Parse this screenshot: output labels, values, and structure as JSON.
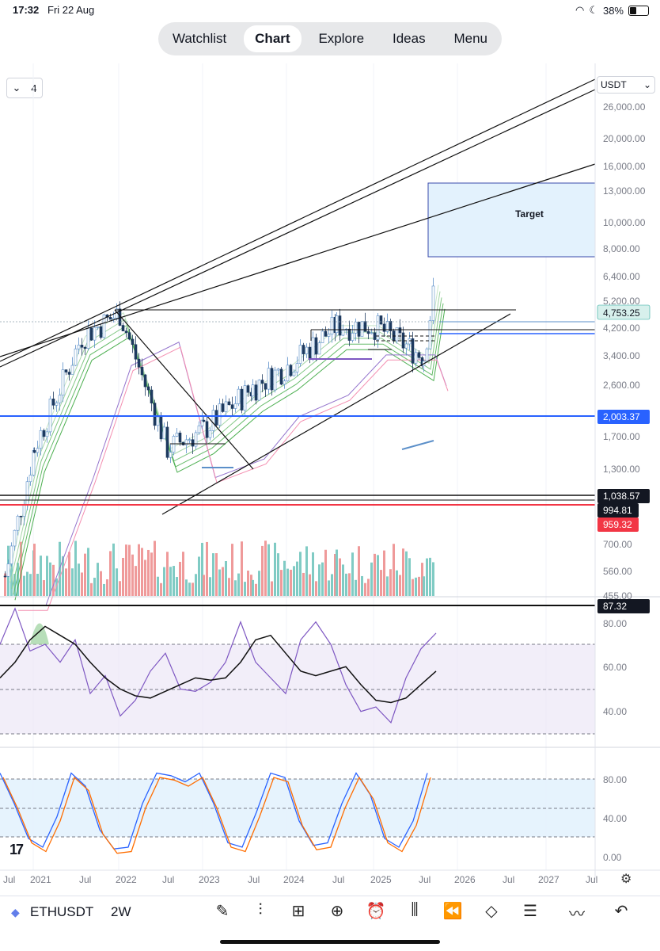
{
  "status": {
    "time": "17:32",
    "date": "Fri 22 Aug",
    "battery": "38%"
  },
  "nav": {
    "items": [
      "Watchlist",
      "Chart",
      "Explore",
      "Ideas",
      "Menu"
    ],
    "active": 1
  },
  "toolbar_top": {
    "interval_label": "4",
    "currency": "USDT"
  },
  "price_axis": {
    "ticks": [
      "26,000.00",
      "20,000.00",
      "16,000.00",
      "13,000.00",
      "10,000.00",
      "8,000.00",
      "6,400.00",
      "5,200.00",
      "4,200.00",
      "3,400.00",
      "2,600.00",
      "1,700.00",
      "1,300.00",
      "700.00",
      "560.00",
      "455.00"
    ]
  },
  "badges": {
    "last_price": "4,753.25",
    "level_2003": "2,003.37",
    "level_1038": "1,038.57",
    "level_994": "994.81",
    "level_959": "959.32",
    "rsi_value": "87.32"
  },
  "annotation": {
    "target": "Target"
  },
  "rsi_axis": [
    "80.00",
    "60.00",
    "40.00"
  ],
  "stoch_axis": [
    "80.00",
    "40.00",
    "0.00"
  ],
  "time_axis": [
    "Jul",
    "2021",
    "Jul",
    "2022",
    "Jul",
    "2023",
    "Jul",
    "2024",
    "Jul",
    "2025",
    "Jul",
    "2026",
    "Jul",
    "2027",
    "Jul"
  ],
  "bottom": {
    "symbol": "ETHUSDT",
    "timeframe": "2W",
    "logo": "17"
  },
  "colors": {
    "up": "#26a69a",
    "down": "#ef5350",
    "candle_up": "#5b8fc9",
    "rsi": "#7e57c2",
    "blue_level": "#2962ff",
    "red_level": "#f23645"
  },
  "chart_data": {
    "type": "line",
    "title": "ETHUSDT 2W",
    "ylabel": "USDT",
    "y_scale": "log",
    "x": [
      "Jul 2020",
      "Jan 2021",
      "Jul 2021",
      "Jan 2022",
      "Jul 2022",
      "Jan 2023",
      "Jul 2023",
      "Jan 2024",
      "Jul 2024",
      "Jan 2025",
      "Jul 2025",
      "Aug 2025"
    ],
    "series": [
      {
        "values": [
          350,
          1100,
          3000,
          3700,
          1100,
          1300,
          1900,
          2300,
          3300,
          3300,
          2500,
          4753
        ]
      }
    ],
    "levels": [
      2003.37,
      1038.57,
      994.81,
      959.32
    ],
    "last_price": 4753.25,
    "target_zone": [
      7500,
      14000
    ],
    "ylim": [
      455,
      30000
    ]
  }
}
